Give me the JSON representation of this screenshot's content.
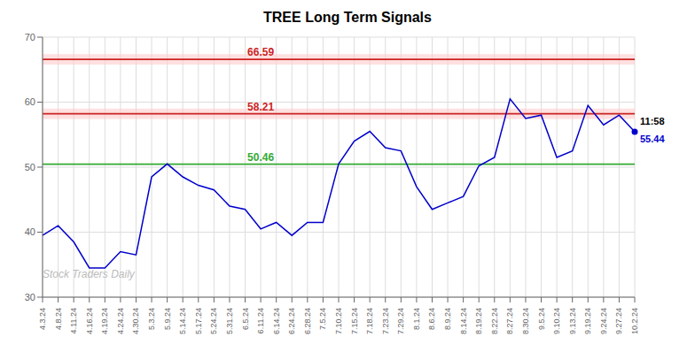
{
  "chart_data": {
    "type": "line",
    "title": "TREE Long Term Signals",
    "categories": [
      "4.3.24",
      "4.8.24",
      "4.11.24",
      "4.16.24",
      "4.19.24",
      "4.24.24",
      "4.30.24",
      "5.3.24",
      "5.9.24",
      "5.14.24",
      "5.17.24",
      "5.24.24",
      "5.31.24",
      "6.5.24",
      "6.11.24",
      "6.14.24",
      "6.24.24",
      "6.28.24",
      "7.5.24",
      "7.10.24",
      "7.15.24",
      "7.18.24",
      "7.23.24",
      "7.29.24",
      "8.1.24",
      "8.6.24",
      "8.9.24",
      "8.14.24",
      "8.19.24",
      "8.22.24",
      "8.27.24",
      "8.30.24",
      "9.5.24",
      "9.10.24",
      "9.13.24",
      "9.19.24",
      "9.24.24",
      "9.27.24",
      "10.2.24"
    ],
    "values": [
      39.5,
      41.0,
      38.5,
      34.5,
      34.5,
      37.0,
      36.5,
      48.5,
      50.5,
      48.5,
      47.2,
      46.5,
      44.0,
      43.5,
      40.5,
      41.5,
      39.5,
      41.5,
      41.5,
      50.5,
      54.0,
      55.5,
      53.0,
      52.5,
      47.0,
      43.5,
      44.5,
      45.5,
      50.2,
      51.5,
      60.5,
      57.5,
      58.0,
      51.5,
      52.5,
      59.5,
      56.5,
      58.0,
      55.44
    ],
    "color": "#0000cc",
    "ylim": [
      30,
      70
    ],
    "yticks": [
      30,
      40,
      50,
      60,
      70
    ],
    "grid": true,
    "hlines": [
      {
        "value": 50.46,
        "label": "50.46",
        "color": "#33aa33"
      },
      {
        "value": 58.21,
        "label": "58.21",
        "color": "#cc2222"
      },
      {
        "value": 66.59,
        "label": "66.59",
        "color": "#cc2222"
      }
    ],
    "bands": [
      {
        "y1": 57.41,
        "y2": 59.01,
        "color": "#ffcccc"
      },
      {
        "y1": 65.79,
        "y2": 67.39,
        "color": "#ffcccc"
      }
    ],
    "annotations": [
      {
        "text": "11:58",
        "color": "#000000"
      },
      {
        "text": "55.44",
        "color": "#0000cc"
      },
      {
        "text": "Stock Traders Daily",
        "color": "#bbbbbb"
      }
    ]
  }
}
